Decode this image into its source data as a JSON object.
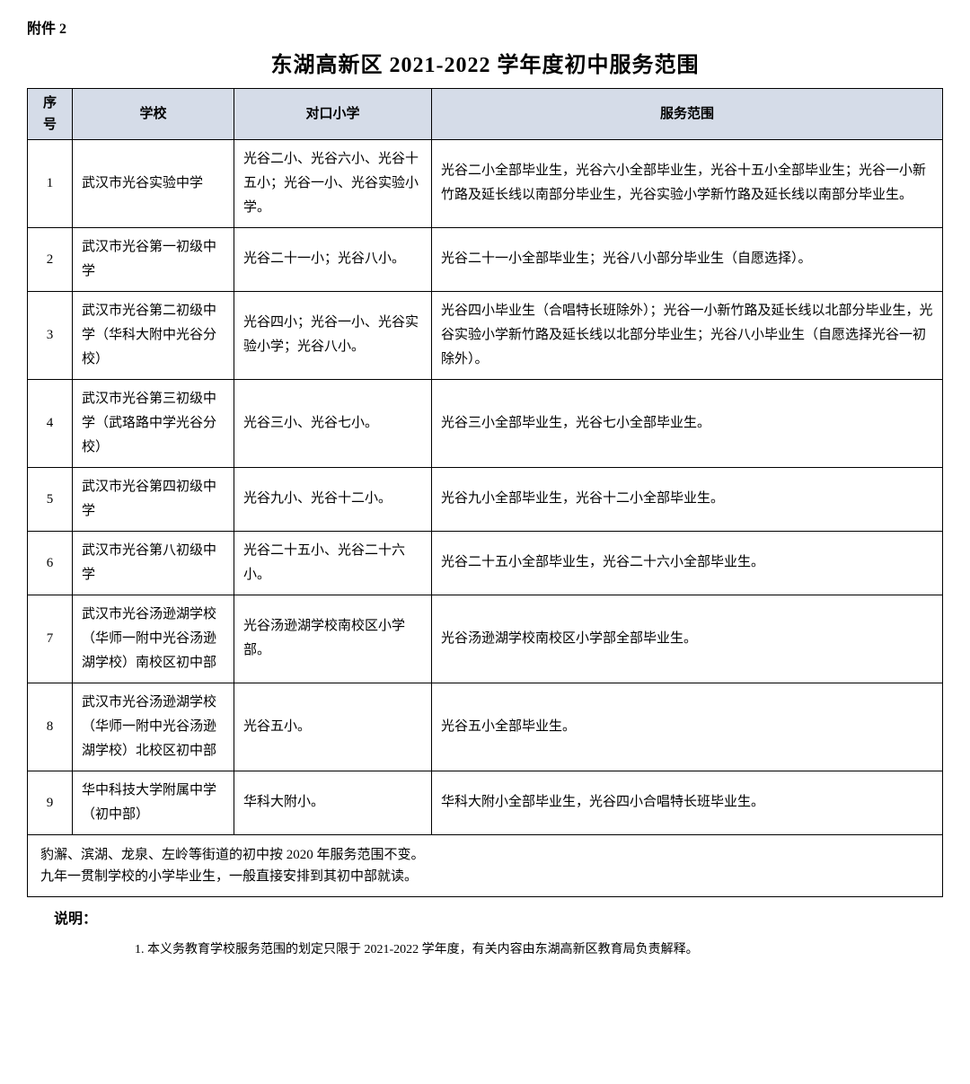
{
  "attachment_label": "附件 2",
  "title": "东湖高新区 2021-2022 学年度初中服务范围",
  "headers": {
    "index": "序号",
    "school": "学校",
    "primary": "对口小学",
    "range": "服务范围"
  },
  "rows": [
    {
      "index": "1",
      "school": "武汉市光谷实验中学",
      "primary": "光谷二小、光谷六小、光谷十五小；光谷一小、光谷实验小学。",
      "range": "光谷二小全部毕业生，光谷六小全部毕业生，光谷十五小全部毕业生；光谷一小新竹路及延长线以南部分毕业生，光谷实验小学新竹路及延长线以南部分毕业生。"
    },
    {
      "index": "2",
      "school": "武汉市光谷第一初级中学",
      "primary": "光谷二十一小；光谷八小。",
      "range": "光谷二十一小全部毕业生；光谷八小部分毕业生（自愿选择）。"
    },
    {
      "index": "3",
      "school": "武汉市光谷第二初级中学（华科大附中光谷分校）",
      "primary": "光谷四小；光谷一小、光谷实验小学；光谷八小。",
      "range": "光谷四小毕业生（合唱特长班除外）；光谷一小新竹路及延长线以北部分毕业生，光谷实验小学新竹路及延长线以北部分毕业生；光谷八小毕业生（自愿选择光谷一初除外）。"
    },
    {
      "index": "4",
      "school": "武汉市光谷第三初级中学（武珞路中学光谷分校）",
      "primary": "光谷三小、光谷七小。",
      "range": "光谷三小全部毕业生，光谷七小全部毕业生。"
    },
    {
      "index": "5",
      "school": "武汉市光谷第四初级中学",
      "primary": "光谷九小、光谷十二小。",
      "range": "光谷九小全部毕业生，光谷十二小全部毕业生。"
    },
    {
      "index": "6",
      "school": "武汉市光谷第八初级中学",
      "primary": "光谷二十五小、光谷二十六小。",
      "range": "光谷二十五小全部毕业生，光谷二十六小全部毕业生。"
    },
    {
      "index": "7",
      "school": "武汉市光谷汤逊湖学校（华师一附中光谷汤逊湖学校）南校区初中部",
      "primary": "光谷汤逊湖学校南校区小学部。",
      "range": "光谷汤逊湖学校南校区小学部全部毕业生。"
    },
    {
      "index": "8",
      "school": "武汉市光谷汤逊湖学校（华师一附中光谷汤逊湖学校）北校区初中部",
      "primary": "光谷五小。",
      "range": "光谷五小全部毕业生。"
    },
    {
      "index": "9",
      "school": "华中科技大学附属中学（初中部）",
      "primary": "华科大附小。",
      "range": "华科大附小全部毕业生，光谷四小合唱特长班毕业生。"
    }
  ],
  "footer_note_line1": "豹澥、滨湖、龙泉、左岭等街道的初中按 2020 年服务范围不变。",
  "footer_note_line2": "九年一贯制学校的小学毕业生，一般直接安排到其初中部就读。",
  "explain_label": "说明：",
  "explain_item_1": "1. 本义务教育学校服务范围的划定只限于 2021-2022 学年度，有关内容由东湖高新区教育局负责解释。"
}
